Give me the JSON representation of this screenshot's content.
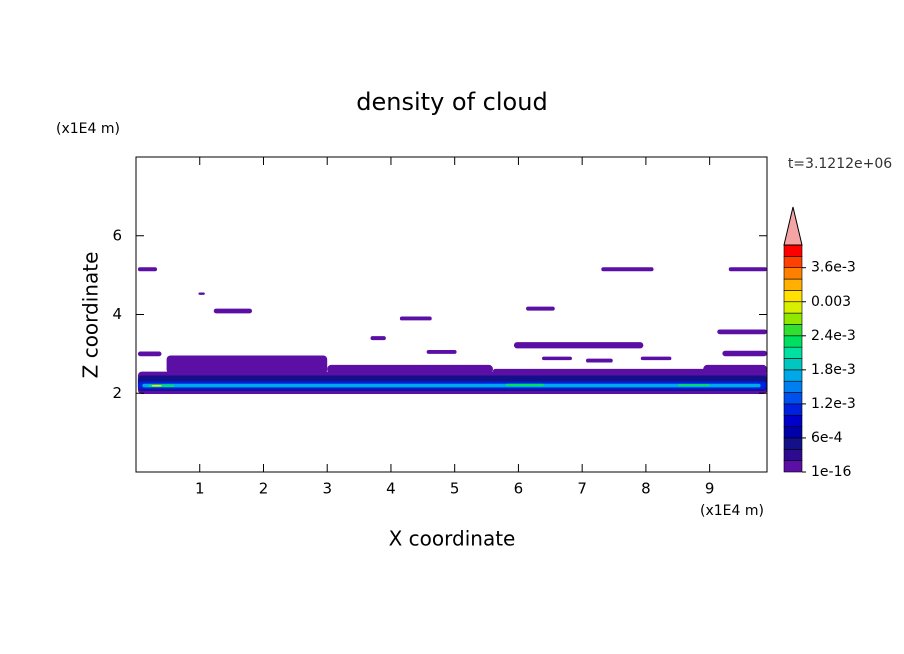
{
  "chart_data": {
    "type": "contour",
    "title": "density of cloud",
    "x_label": "X coordinate",
    "y_label": "Z coordinate",
    "x_unit": "(x1E4 m)",
    "y_unit": "(x1E4 m)",
    "annotation": "t=3.1212e+06",
    "xlim": [
      0,
      9.9
    ],
    "ylim": [
      0,
      8
    ],
    "xticks": [
      1,
      2,
      3,
      4,
      5,
      6,
      7,
      8,
      9
    ],
    "yticks": [
      2,
      4,
      6
    ],
    "colorbar": {
      "levels": [
        1e-16,
        0.0002,
        0.0004,
        0.0006,
        0.0008,
        0.001,
        0.0012,
        0.0014,
        0.0016,
        0.0018,
        0.002,
        0.0022,
        0.0024,
        0.0026,
        0.0028,
        0.003,
        0.0032,
        0.0034,
        0.0036,
        0.0038,
        0.004
      ],
      "colors": [
        "#5b0fa5",
        "#2e0a8e",
        "#14108a",
        "#0000a8",
        "#0000c8",
        "#0020e0",
        "#0050f0",
        "#0080f0",
        "#00a8e8",
        "#00c8c0",
        "#00e0a0",
        "#00e060",
        "#30e030",
        "#90e800",
        "#d8f000",
        "#ffe000",
        "#ffb000",
        "#ff8000",
        "#ff4000",
        "#ff0000"
      ],
      "extend_color": "#f4a4a4",
      "ticks": [
        {
          "value": 1e-16,
          "label": "1e-16"
        },
        {
          "value": 0.0006,
          "label": "6e-4"
        },
        {
          "value": 0.0012,
          "label": "1.2e-3"
        },
        {
          "value": 0.0018,
          "label": "1.8e-3"
        },
        {
          "value": 0.0024,
          "label": "2.4e-3"
        },
        0.003,
        {
          "value": 0.0036,
          "label": "3.6e-3"
        }
      ]
    },
    "regions": [
      {
        "x": [
          0.03,
          0.33
        ],
        "z": [
          5.1,
          5.2
        ],
        "value": 0.0001
      },
      {
        "x": [
          0.98,
          1.08
        ],
        "z": [
          4.5,
          4.56
        ],
        "value": 0.0001
      },
      {
        "x": [
          1.22,
          1.82
        ],
        "z": [
          4.03,
          4.15
        ],
        "value": 0.0001
      },
      {
        "x": [
          7.3,
          8.12
        ],
        "z": [
          5.1,
          5.2
        ],
        "value": 0.0001
      },
      {
        "x": [
          9.3,
          9.9
        ],
        "z": [
          5.1,
          5.2
        ],
        "value": 0.0001
      },
      {
        "x": [
          4.14,
          4.64
        ],
        "z": [
          3.85,
          3.95
        ],
        "value": 0.0001
      },
      {
        "x": [
          6.12,
          6.57
        ],
        "z": [
          4.1,
          4.2
        ],
        "value": 0.0001
      },
      {
        "x": [
          9.12,
          9.9
        ],
        "z": [
          3.5,
          3.62
        ],
        "value": 0.0001
      },
      {
        "x": [
          3.68,
          3.92
        ],
        "z": [
          3.35,
          3.45
        ],
        "value": 0.0001
      },
      {
        "x": [
          5.93,
          7.96
        ],
        "z": [
          3.14,
          3.3
        ],
        "value": 0.0001
      },
      {
        "x": [
          4.56,
          5.03
        ],
        "z": [
          3.0,
          3.1
        ],
        "value": 0.0001
      },
      {
        "x": [
          0.03,
          0.4
        ],
        "z": [
          2.94,
          3.06
        ],
        "value": 0.0001
      },
      {
        "x": [
          9.2,
          9.9
        ],
        "z": [
          2.94,
          3.08
        ],
        "value": 0.0001
      },
      {
        "x": [
          1.8,
          2.16
        ],
        "z": [
          2.8,
          2.88
        ],
        "value": 0.0001
      },
      {
        "x": [
          2.34,
          2.76
        ],
        "z": [
          2.76,
          2.86
        ],
        "value": 0.0001
      },
      {
        "x": [
          6.37,
          6.84
        ],
        "z": [
          2.84,
          2.93
        ],
        "value": 0.0001
      },
      {
        "x": [
          7.06,
          7.48
        ],
        "z": [
          2.78,
          2.88
        ],
        "value": 0.0001
      },
      {
        "x": [
          7.92,
          8.4
        ],
        "z": [
          2.84,
          2.93
        ],
        "value": 0.0001
      },
      {
        "x": [
          0.48,
          3.0
        ],
        "z": [
          2.5,
          2.96
        ],
        "value": 0.0001
      },
      {
        "x": [
          3.0,
          5.6
        ],
        "z": [
          2.5,
          2.72
        ],
        "value": 0.0001
      },
      {
        "x": [
          5.6,
          9.9
        ],
        "z": [
          2.5,
          2.62
        ],
        "value": 0.0001
      },
      {
        "x": [
          8.9,
          9.9
        ],
        "z": [
          2.5,
          2.72
        ],
        "value": 0.0001
      },
      {
        "x": [
          0.03,
          9.9
        ],
        "z": [
          1.98,
          2.55
        ],
        "value": 0.0001
      },
      {
        "x": [
          0.03,
          9.9
        ],
        "z": [
          2.06,
          2.45
        ],
        "value": 0.0005
      },
      {
        "x": [
          0.03,
          9.9
        ],
        "z": [
          2.1,
          2.3
        ],
        "value": 0.0011
      },
      {
        "x": [
          0.1,
          9.8
        ],
        "z": [
          2.15,
          2.24
        ],
        "value": 0.0017
      },
      {
        "x": [
          0.2,
          0.6
        ],
        "z": [
          2.16,
          2.22
        ],
        "value": 0.0023
      },
      {
        "x": [
          5.8,
          6.4
        ],
        "z": [
          2.18,
          2.24
        ],
        "value": 0.0023
      },
      {
        "x": [
          8.5,
          9.0
        ],
        "z": [
          2.18,
          2.23
        ],
        "value": 0.0023
      },
      {
        "x": [
          0.25,
          0.4
        ],
        "z": [
          2.17,
          2.21
        ],
        "value": 0.0031
      }
    ]
  }
}
